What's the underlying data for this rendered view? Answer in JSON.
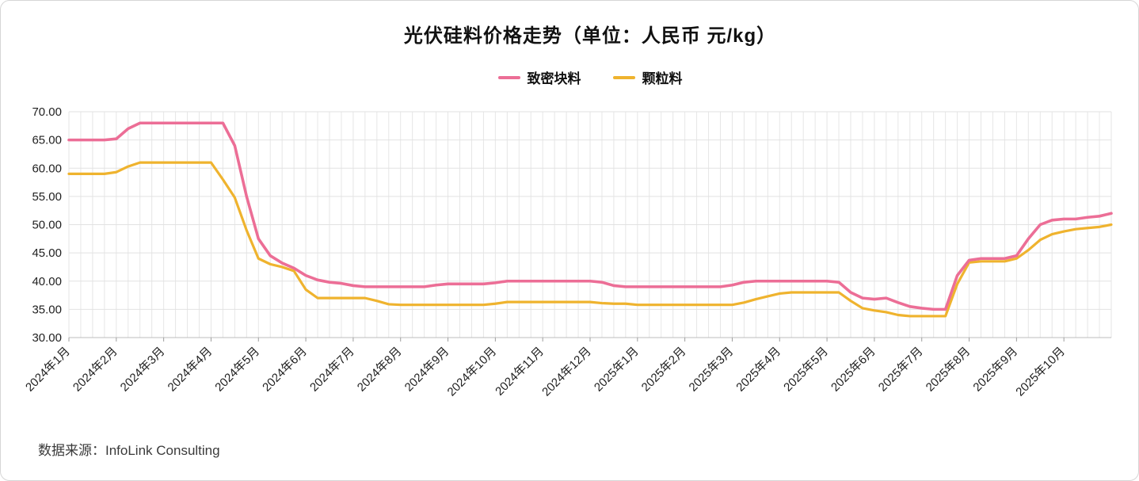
{
  "title": "光伏硅料价格走势（单位：人民币 元/kg）",
  "legend": {
    "items": [
      {
        "label": "致密块料",
        "color": "#ec6e96"
      },
      {
        "label": "颗粒料",
        "color": "#efb32e"
      }
    ]
  },
  "footer": {
    "source_label": "数据来源：InfoLink Consulting"
  },
  "chart_data": {
    "type": "line",
    "title": "光伏硅料价格走势（单位：人民币 元/kg）",
    "unit": "人民币 元/kg",
    "legend_position": "top",
    "grid": true,
    "ylim": [
      30,
      70
    ],
    "ytick_step": 5,
    "ytick_decimals": 2,
    "points_per_month": 4,
    "x_axis_months": [
      "2024年1月",
      "2024年2月",
      "2024年3月",
      "2024年4月",
      "2024年5月",
      "2024年6月",
      "2024年7月",
      "2024年8月",
      "2024年9月",
      "2024年10月",
      "2024年11月",
      "2024年12月",
      "2025年1月",
      "2025年2月",
      "2025年3月",
      "2025年4月",
      "2025年5月",
      "2025年6月",
      "2025年7月",
      "2025年8月",
      "2025年9月",
      "2025年10月"
    ],
    "series": [
      {
        "name": "致密块料",
        "color": "#ec6e96",
        "values": [
          65,
          65,
          65,
          65,
          65.2,
          67,
          68,
          68,
          68,
          68,
          68,
          68,
          68,
          68,
          64,
          55,
          47.5,
          44.5,
          43.2,
          42.3,
          41,
          40.2,
          39.8,
          39.6,
          39.2,
          39,
          39,
          39,
          39,
          39,
          39,
          39.3,
          39.5,
          39.5,
          39.5,
          39.5,
          39.7,
          40,
          40,
          40,
          40,
          40,
          40,
          40,
          40,
          39.8,
          39.2,
          39,
          39,
          39,
          39,
          39,
          39,
          39,
          39,
          39,
          39.3,
          39.8,
          40,
          40,
          40,
          40,
          40,
          40,
          40,
          39.8,
          38,
          37,
          36.8,
          37,
          36.2,
          35.5,
          35.2,
          35,
          35,
          41,
          43.7,
          44,
          44,
          44,
          44.5,
          47.5,
          50,
          50.8,
          51,
          51,
          51.3,
          51.5,
          52
        ]
      },
      {
        "name": "颗粒料",
        "color": "#efb32e",
        "values": [
          59,
          59,
          59,
          59,
          59.3,
          60.3,
          61,
          61,
          61,
          61,
          61,
          61,
          61,
          58,
          54.8,
          49,
          44,
          43,
          42.5,
          41.8,
          38.5,
          37,
          37,
          37,
          37,
          37,
          36.5,
          35.9,
          35.8,
          35.8,
          35.8,
          35.8,
          35.8,
          35.8,
          35.8,
          35.8,
          36,
          36.3,
          36.3,
          36.3,
          36.3,
          36.3,
          36.3,
          36.3,
          36.3,
          36.1,
          36,
          36,
          35.8,
          35.8,
          35.8,
          35.8,
          35.8,
          35.8,
          35.8,
          35.8,
          35.8,
          36.2,
          36.8,
          37.3,
          37.8,
          38,
          38,
          38,
          38,
          38,
          36.5,
          35.2,
          34.8,
          34.5,
          34,
          33.8,
          33.8,
          33.8,
          33.8,
          39.5,
          43.3,
          43.5,
          43.5,
          43.5,
          44,
          45.5,
          47.3,
          48.3,
          48.8,
          49.2,
          49.4,
          49.6,
          50
        ]
      }
    ],
    "source": "数据来源：InfoLink Consulting"
  }
}
